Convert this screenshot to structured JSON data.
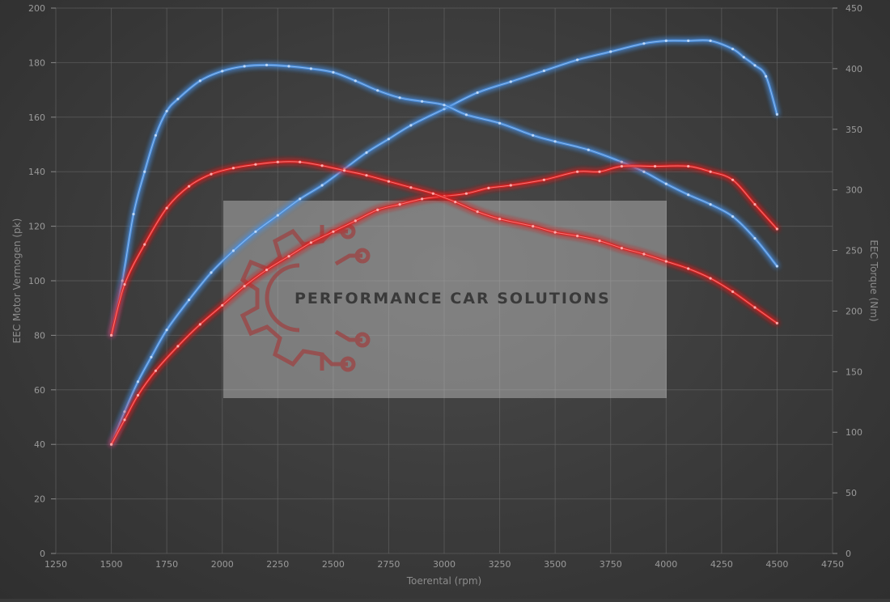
{
  "chart_data": {
    "type": "line",
    "xlabel": "Toerental (rpm)",
    "ylabel_left": "EEC Motor Vermogen (pk)",
    "ylabel_right": "EEC Torque (Nm)",
    "xlim": [
      1250,
      4750
    ],
    "ylim_left": [
      0,
      200
    ],
    "ylim_right": [
      0,
      450
    ],
    "x_ticks": [
      1250,
      1500,
      1750,
      2000,
      2250,
      2500,
      2750,
      3000,
      3250,
      3500,
      3750,
      4000,
      4250,
      4500,
      4750
    ],
    "y_left_ticks": [
      0,
      20,
      40,
      60,
      80,
      100,
      120,
      140,
      160,
      180,
      200
    ],
    "y_right_ticks": [
      0,
      50,
      100,
      150,
      200,
      250,
      300,
      350,
      400,
      450
    ],
    "grid": true,
    "series": [
      {
        "axis": "left",
        "color": "#4a90e2",
        "x": [
          1500,
          1560,
          1620,
          1680,
          1750,
          1850,
          1950,
          2050,
          2150,
          2250,
          2350,
          2450,
          2550,
          2650,
          2750,
          2850,
          3000,
          3150,
          3300,
          3450,
          3600,
          3750,
          3900,
          4000,
          4100,
          4200,
          4300,
          4350,
          4400,
          4450,
          4500
        ],
        "values": [
          40,
          52,
          63,
          72,
          82,
          93,
          103,
          111,
          118,
          124,
          130,
          135,
          141,
          147,
          152,
          157,
          163,
          169,
          173,
          177,
          181,
          184,
          187,
          188,
          188,
          188,
          185,
          182,
          179,
          175,
          161
        ]
      },
      {
        "axis": "right",
        "color": "#4a90e2",
        "x": [
          1500,
          1550,
          1600,
          1650,
          1700,
          1750,
          1800,
          1900,
          2000,
          2100,
          2200,
          2300,
          2400,
          2500,
          2600,
          2700,
          2800,
          2900,
          3000,
          3100,
          3250,
          3400,
          3500,
          3650,
          3800,
          3900,
          4000,
          4100,
          4200,
          4300,
          4400,
          4500
        ],
        "values": [
          180,
          225,
          280,
          315,
          345,
          365,
          375,
          390,
          398,
          402,
          403,
          402,
          400,
          397,
          390,
          382,
          376,
          373,
          370,
          362,
          355,
          345,
          340,
          333,
          323,
          315,
          305,
          296,
          288,
          278,
          260,
          237
        ]
      },
      {
        "axis": "left",
        "color": "#e02020",
        "x": [
          1500,
          1560,
          1620,
          1700,
          1800,
          1900,
          2000,
          2100,
          2200,
          2300,
          2400,
          2500,
          2600,
          2700,
          2800,
          2900,
          3000,
          3100,
          3200,
          3300,
          3450,
          3600,
          3700,
          3800,
          3950,
          4100,
          4200,
          4300,
          4400,
          4500
        ],
        "values": [
          40,
          49,
          58,
          67,
          76,
          84,
          91,
          98,
          104,
          109,
          114,
          118,
          122,
          126,
          128,
          130,
          131,
          132,
          134,
          135,
          137,
          140,
          140,
          142,
          142,
          142,
          140,
          137,
          128,
          119
        ]
      },
      {
        "axis": "right",
        "color": "#e02020",
        "x": [
          1500,
          1560,
          1650,
          1750,
          1850,
          1950,
          2050,
          2150,
          2250,
          2350,
          2450,
          2550,
          2650,
          2750,
          2850,
          2950,
          3050,
          3150,
          3250,
          3400,
          3500,
          3600,
          3700,
          3800,
          3900,
          4000,
          4100,
          4200,
          4300,
          4400,
          4500
        ],
        "values": [
          180,
          222,
          255,
          285,
          303,
          313,
          318,
          321,
          323,
          323,
          320,
          316,
          312,
          307,
          302,
          297,
          290,
          282,
          276,
          270,
          265,
          262,
          258,
          252,
          247,
          241,
          235,
          227,
          216,
          203,
          190
        ]
      }
    ]
  },
  "watermark": {
    "brand": "PERFORMANCE CAR SOLUTIONS",
    "icon": "gear-circuit-icon"
  }
}
